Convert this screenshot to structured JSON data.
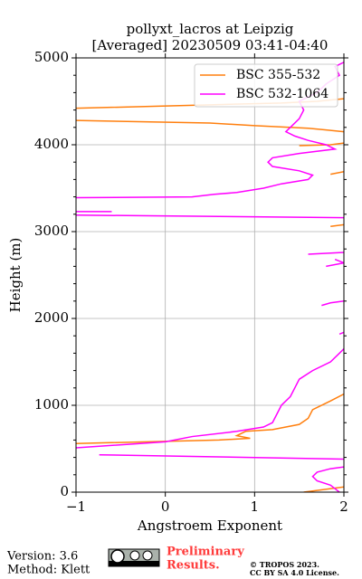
{
  "chart_data": {
    "type": "line",
    "title": "pollyxt_lacros at Leipzig",
    "subtitle": "[Averaged] 20230509 03:41-04:40",
    "xlabel": "Angstroem Exponent",
    "ylabel": "Height (m)",
    "xlim": [
      -1,
      2
    ],
    "ylim": [
      0,
      5000
    ],
    "xticks": [
      {
        "value": -1,
        "label": "−1"
      },
      0,
      1,
      2
    ],
    "yticks": [
      0,
      1000,
      2000,
      3000,
      4000,
      5000
    ],
    "y_minor_ticks": [
      200,
      400,
      600,
      800,
      1200,
      1400,
      1600,
      1800,
      2200,
      2400,
      2600,
      2800,
      3200,
      3400,
      3600,
      3800,
      4200,
      4400,
      4600,
      4800
    ],
    "grid": true,
    "legend": "upper right",
    "series": [
      {
        "name": "BSC 355-532",
        "color": "#ff7f0e",
        "heights": [
          0,
          60,
          null,
          560,
          600,
          620,
          650,
          700,
          720,
          780,
          850,
          950,
          1050,
          1130,
          null,
          3060,
          3080,
          null,
          3660,
          3690,
          null,
          3990,
          4000,
          4020,
          null,
          4150,
          4170,
          4190,
          4220,
          4250,
          4280,
          null,
          4420,
          4460,
          4480,
          4500,
          4530
        ],
        "values": [
          1.55,
          2,
          null,
          -1,
          0.6,
          0.95,
          0.8,
          0.9,
          1.2,
          1.5,
          1.6,
          1.65,
          1.85,
          2,
          null,
          1.85,
          2,
          null,
          1.85,
          2,
          null,
          1.5,
          1.85,
          2,
          null,
          2,
          1.8,
          1.6,
          1.0,
          0.5,
          -1,
          null,
          -1,
          0.5,
          1.3,
          1.7,
          2
        ]
      },
      {
        "name": "BSC 532-1064",
        "color": "#ff00ff",
        "heights": [
          0,
          80,
          130,
          180,
          230,
          270,
          290,
          null,
          380,
          430,
          null,
          510,
          580,
          640,
          700,
          750,
          800,
          900,
          1000,
          1100,
          1200,
          1300,
          1400,
          1500,
          1600,
          1650,
          null,
          1820,
          1840,
          null,
          2150,
          2180,
          2200,
          null,
          2600,
          2640,
          2680,
          null,
          2740,
          2760,
          null,
          3160,
          3190,
          null,
          3230,
          3230,
          null,
          3390,
          3400,
          3430,
          3450,
          3500,
          3550,
          3600,
          3650,
          3700,
          3750,
          3800,
          3850,
          3900,
          3950,
          4000,
          4050,
          4100,
          4150,
          4200,
          4300,
          4400,
          4500,
          4600,
          4700,
          4800,
          4900,
          4950
        ],
        "values": [
          1.95,
          1.85,
          1.7,
          1.65,
          1.7,
          1.85,
          2,
          null,
          2,
          -0.74,
          null,
          -1,
          0,
          0.3,
          0.8,
          1.1,
          1.2,
          1.25,
          1.3,
          1.4,
          1.45,
          1.5,
          1.65,
          1.85,
          1.95,
          2,
          null,
          1.95,
          2,
          null,
          1.75,
          1.85,
          2,
          null,
          1.8,
          2,
          1.9,
          null,
          1.6,
          2,
          null,
          2,
          -1,
          null,
          -1,
          -0.6,
          null,
          -1,
          0.3,
          0.55,
          0.8,
          1.1,
          1.3,
          1.6,
          1.65,
          1.5,
          1.2,
          1.15,
          1.2,
          1.5,
          1.9,
          1.8,
          1.6,
          1.45,
          1.35,
          1.4,
          1.5,
          1.55,
          1.5,
          1.7,
          1.8,
          1.95,
          1.9,
          2
        ]
      }
    ]
  },
  "footer": {
    "version": "Version: 3.6",
    "method": "Method: Klett",
    "preliminary": [
      "Preliminary",
      "Results."
    ],
    "copyright": [
      "© TROPOS 2023.",
      "CC BY SA 4.0 License."
    ]
  }
}
